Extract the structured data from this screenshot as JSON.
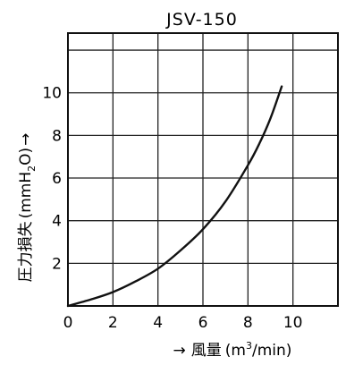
{
  "chart_data": {
    "type": "line",
    "title": "JSV-150",
    "xlabel": {
      "arrow": "→",
      "text": "風量",
      "unit_open": "(m",
      "unit_sup": "3",
      "unit_slash": "∕",
      "unit_close": "min)"
    },
    "ylabel": {
      "text": "圧力損失",
      "unit_open": "(mmH",
      "unit_sub": "2",
      "unit_close": "O)",
      "arrow": "→"
    },
    "xlim": [
      0,
      12
    ],
    "ylim": [
      0,
      12.8
    ],
    "xticks": [
      0,
      2,
      4,
      6,
      8,
      10
    ],
    "xtick_labels": [
      "0",
      "2",
      "4",
      "6",
      "8",
      "10"
    ],
    "yticks": [
      2,
      4,
      6,
      8,
      10
    ],
    "ytick_labels": [
      "2",
      "4",
      "6",
      "8",
      "10"
    ],
    "grid": true,
    "series": [
      {
        "x": [
          0,
          1,
          2,
          3,
          4,
          5,
          6,
          7,
          8,
          8.5,
          9,
          9.5
        ],
        "y": [
          0,
          0.3,
          0.65,
          1.15,
          1.75,
          2.6,
          3.6,
          4.9,
          6.6,
          7.6,
          8.8,
          10.3
        ]
      }
    ],
    "colors": {
      "line": "#111111",
      "grid": "#222222",
      "axis": "#111111"
    }
  }
}
